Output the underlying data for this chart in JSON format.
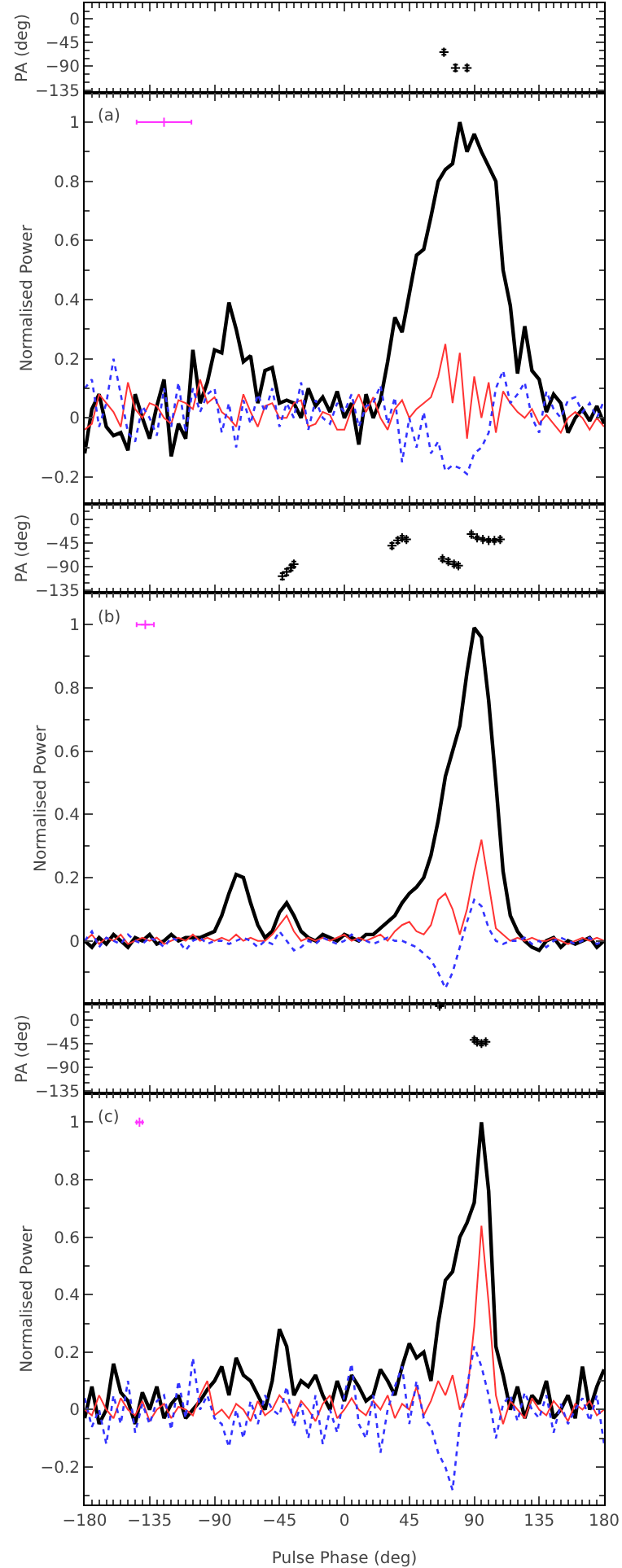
{
  "chart_data": [
    {
      "type": "scatter",
      "ylabel": "PA (deg)",
      "xlim": [
        -180,
        180
      ],
      "xticks": [
        -180,
        -135,
        -90,
        -45,
        0,
        45,
        90,
        135,
        180
      ],
      "ylim": [
        -140,
        30
      ],
      "yticks": [
        0,
        -45,
        -90,
        -135
      ],
      "tick_labels": "y",
      "marker": "cross",
      "series": [
        {
          "color": "#000000",
          "x": [
            69,
            77,
            85
          ],
          "values": [
            -63,
            -93,
            -93
          ],
          "errors": [
            5,
            6,
            5
          ]
        }
      ]
    },
    {
      "type": "line",
      "ylabel": "Normalised Power",
      "annotations": [
        "(a)"
      ],
      "xlim": [
        -180,
        180
      ],
      "xticks": [
        -180,
        -135,
        -90,
        -45,
        0,
        45,
        90,
        135,
        180
      ],
      "ylim": [
        -0.29,
        1.1
      ],
      "yticks": [
        -0.2,
        0,
        0.2,
        0.4,
        0.6,
        0.8,
        1
      ],
      "tick_labels": "y",
      "x": [
        -180,
        -175,
        -170,
        -165,
        -160,
        -155,
        -150,
        -145,
        -140,
        -135,
        -130,
        -125,
        -120,
        -115,
        -110,
        -105,
        -100,
        -95,
        -90,
        -85,
        -80,
        -75,
        -70,
        -65,
        -60,
        -55,
        -50,
        -45,
        -40,
        -35,
        -30,
        -25,
        -20,
        -15,
        -10,
        -5,
        0,
        5,
        10,
        15,
        20,
        25,
        30,
        35,
        40,
        45,
        50,
        55,
        60,
        65,
        70,
        75,
        80,
        85,
        90,
        95,
        100,
        105,
        110,
        115,
        120,
        125,
        130,
        135,
        140,
        145,
        150,
        155,
        160,
        165,
        170,
        175,
        180
      ],
      "series": [
        {
          "color": "#000000",
          "values": [
            -0.12,
            0.03,
            0.08,
            -0.03,
            -0.06,
            -0.05,
            -0.11,
            0.08,
            0.0,
            -0.07,
            0.04,
            0.13,
            -0.13,
            -0.02,
            -0.07,
            0.23,
            0.05,
            0.12,
            0.23,
            0.22,
            0.39,
            0.3,
            0.19,
            0.21,
            0.05,
            0.16,
            0.17,
            0.05,
            0.06,
            0.05,
            0.0,
            0.1,
            0.04,
            0.07,
            0.02,
            0.09,
            0.0,
            0.05,
            -0.09,
            0.08,
            0.0,
            0.06,
            0.19,
            0.34,
            0.29,
            0.42,
            0.55,
            0.57,
            0.68,
            0.8,
            0.84,
            0.86,
            1.0,
            0.9,
            0.96,
            0.9,
            0.85,
            0.8,
            0.5,
            0.38,
            0.15,
            0.31,
            0.16,
            0.13,
            0.02,
            0.08,
            0.05,
            -0.05,
            0.0,
            0.03,
            -0.01,
            0.04,
            -0.02
          ]
        },
        {
          "color": "#ff3333",
          "values": [
            -0.04,
            -0.02,
            0.08,
            0.05,
            0.02,
            -0.03,
            0.12,
            0.03,
            0.0,
            0.05,
            0.04,
            0.0,
            -0.02,
            0.06,
            0.05,
            0.03,
            0.13,
            0.05,
            0.07,
            0.02,
            0.0,
            -0.03,
            0.08,
            0.02,
            -0.03,
            0.04,
            0.05,
            0.0,
            0.0,
            0.05,
            0.06,
            -0.03,
            -0.02,
            0.02,
            0.01,
            -0.04,
            -0.04,
            0.03,
            0.08,
            0.02,
            0.07,
            0.0,
            -0.04,
            0.03,
            0.06,
            0.0,
            0.03,
            0.05,
            0.07,
            0.14,
            0.25,
            0.05,
            0.22,
            -0.07,
            0.14,
            0.0,
            0.12,
            -0.05,
            0.09,
            0.05,
            0.02,
            0.0,
            0.03,
            -0.02,
            0.01,
            -0.02,
            -0.05,
            0.0,
            0.02,
            0.0,
            -0.04,
            0.0,
            -0.03
          ]
        },
        {
          "color": "#3333ff",
          "line_style": "dotted",
          "values": [
            0.1,
            0.13,
            -0.03,
            0.05,
            0.2,
            0.08,
            -0.05,
            -0.08,
            0.04,
            0.0,
            -0.06,
            0.1,
            -0.03,
            0.12,
            -0.05,
            0.1,
            0.02,
            0.08,
            0.1,
            -0.05,
            0.05,
            -0.1,
            0.06,
            -0.02,
            0.08,
            0.02,
            0.1,
            -0.03,
            0.05,
            0.0,
            0.12,
            -0.04,
            0.06,
            0.0,
            -0.02,
            0.05,
            0.02,
            0.08,
            -0.03,
            0.04,
            0.05,
            0.11,
            -0.02,
            0.07,
            -0.15,
            0.0,
            -0.1,
            0.02,
            -0.12,
            -0.08,
            -0.18,
            -0.16,
            -0.17,
            -0.19,
            -0.12,
            -0.1,
            -0.05,
            0.1,
            0.16,
            0.05,
            0.08,
            0.12,
            0.0,
            -0.05,
            0.09,
            0.03,
            0.0,
            0.06,
            0.07,
            0.02,
            0.05,
            0.0,
            0.06
          ]
        },
        {
          "type": "scatter",
          "marker": "cross",
          "color": "#ff33ff",
          "x": [
            -125
          ],
          "values": [
            1
          ],
          "xerrors": [
            19
          ]
        }
      ]
    },
    {
      "type": "scatter",
      "ylabel": "PA (deg)",
      "xlim": [
        -180,
        180
      ],
      "xticks": [
        -180,
        -135,
        -90,
        -45,
        0,
        45,
        90,
        135,
        180
      ],
      "ylim": [
        -140,
        30
      ],
      "yticks": [
        0,
        -45,
        -90,
        -135
      ],
      "tick_labels": "y",
      "marker": "cross",
      "series": [
        {
          "color": "#000000",
          "x": [
            -43,
            -40,
            -37,
            -35,
            33,
            37,
            40,
            43,
            68,
            72,
            76,
            79,
            88,
            92,
            96,
            100,
            104,
            108
          ],
          "values": [
            -108,
            -100,
            -92,
            -85,
            -50,
            -40,
            -35,
            -38,
            -75,
            -80,
            -85,
            -88,
            -28,
            -35,
            -38,
            -40,
            -40,
            -38
          ],
          "errors": [
            6,
            6,
            5,
            5,
            5,
            5,
            4,
            4,
            4,
            4,
            4,
            4,
            4,
            3,
            3,
            3,
            3,
            4
          ]
        }
      ]
    },
    {
      "type": "line",
      "ylabel": "Normalised Power",
      "annotations": [
        "(b)"
      ],
      "xlim": [
        -180,
        180
      ],
      "xticks": [
        -180,
        -135,
        -90,
        -45,
        0,
        45,
        90,
        135,
        180
      ],
      "ylim": [
        -0.2,
        1.1
      ],
      "yticks": [
        0,
        0.2,
        0.4,
        0.6,
        0.8,
        1
      ],
      "tick_labels": "y",
      "x": [
        -180,
        -175,
        -170,
        -165,
        -160,
        -155,
        -150,
        -145,
        -140,
        -135,
        -130,
        -125,
        -120,
        -115,
        -110,
        -105,
        -100,
        -95,
        -90,
        -85,
        -80,
        -75,
        -70,
        -65,
        -60,
        -55,
        -50,
        -45,
        -40,
        -35,
        -30,
        -25,
        -20,
        -15,
        -10,
        -5,
        0,
        5,
        10,
        15,
        20,
        25,
        30,
        35,
        40,
        45,
        50,
        55,
        60,
        65,
        70,
        75,
        80,
        85,
        90,
        95,
        100,
        105,
        110,
        115,
        120,
        125,
        130,
        135,
        140,
        145,
        150,
        155,
        160,
        165,
        170,
        175,
        180
      ],
      "series": [
        {
          "color": "#000000",
          "values": [
            0.0,
            -0.02,
            0.01,
            -0.01,
            0.02,
            0.0,
            -0.02,
            0.01,
            0.0,
            0.02,
            -0.01,
            0.0,
            0.02,
            0.0,
            0.01,
            0.01,
            0.01,
            0.02,
            0.03,
            0.08,
            0.15,
            0.21,
            0.2,
            0.12,
            0.05,
            0.01,
            0.03,
            0.09,
            0.12,
            0.08,
            0.03,
            0.01,
            0.0,
            0.02,
            0.01,
            0.0,
            0.02,
            0.01,
            0.0,
            0.02,
            0.02,
            0.04,
            0.06,
            0.08,
            0.12,
            0.15,
            0.17,
            0.2,
            0.27,
            0.38,
            0.52,
            0.6,
            0.68,
            0.85,
            0.99,
            0.96,
            0.76,
            0.5,
            0.22,
            0.08,
            0.03,
            0.0,
            -0.02,
            -0.03,
            0.0,
            0.01,
            -0.02,
            0.0,
            -0.01,
            0.0,
            0.01,
            -0.02,
            0.0
          ]
        },
        {
          "color": "#ff3333",
          "values": [
            0.0,
            0.02,
            -0.01,
            0.01,
            0.0,
            0.02,
            -0.01,
            0.0,
            0.01,
            0.0,
            0.01,
            -0.01,
            0.0,
            0.01,
            0.0,
            0.02,
            0.0,
            0.01,
            0.0,
            0.01,
            0.0,
            0.02,
            0.0,
            0.01,
            0.0,
            0.0,
            0.02,
            0.05,
            0.08,
            0.03,
            0.0,
            0.01,
            0.0,
            0.01,
            0.0,
            0.01,
            0.02,
            0.0,
            0.01,
            0.0,
            0.01,
            0.02,
            0.0,
            0.03,
            0.05,
            0.06,
            0.03,
            0.02,
            0.05,
            0.13,
            0.15,
            0.1,
            0.02,
            0.1,
            0.22,
            0.32,
            0.18,
            0.04,
            0.02,
            0.0,
            0.01,
            0.0,
            0.01,
            0.0,
            0.0,
            0.01,
            0.0,
            -0.01,
            0.0,
            0.01,
            0.0,
            0.01,
            0.0
          ]
        },
        {
          "color": "#3333ff",
          "line_style": "dotted",
          "values": [
            0.0,
            0.03,
            -0.02,
            0.01,
            0.0,
            -0.01,
            0.02,
            0.0,
            -0.01,
            0.01,
            0.0,
            -0.02,
            0.01,
            0.0,
            -0.03,
            0.0,
            0.01,
            -0.01,
            0.0,
            0.0,
            -0.01,
            0.0,
            0.01,
            0.0,
            -0.02,
            0.0,
            -0.01,
            0.03,
            0.0,
            -0.03,
            -0.02,
            0.0,
            -0.01,
            0.01,
            0.0,
            -0.01,
            0.0,
            0.02,
            0.0,
            0.0,
            -0.01,
            0.0,
            0.01,
            0.0,
            0.0,
            -0.01,
            -0.02,
            -0.04,
            -0.06,
            -0.1,
            -0.15,
            -0.1,
            -0.02,
            0.06,
            0.13,
            0.11,
            0.04,
            0.0,
            -0.01,
            0.0,
            0.0,
            0.01,
            -0.01,
            0.0,
            -0.02,
            0.0,
            0.01,
            0.0,
            -0.01,
            0.0,
            0.01,
            -0.01,
            0.0
          ]
        },
        {
          "type": "scatter",
          "marker": "cross",
          "color": "#ff33ff",
          "x": [
            -138
          ],
          "values": [
            1
          ],
          "xerrors": [
            6
          ]
        }
      ]
    },
    {
      "type": "scatter",
      "ylabel": "PA (deg)",
      "xlim": [
        -180,
        180
      ],
      "xticks": [
        -180,
        -135,
        -90,
        -45,
        0,
        45,
        90,
        135,
        180
      ],
      "ylim": [
        -140,
        30
      ],
      "yticks": [
        0,
        -45,
        -90,
        -135
      ],
      "tick_labels": "y",
      "marker": "cross",
      "series": [
        {
          "color": "#000000",
          "x": [
            66,
            90,
            92,
            95,
            98
          ],
          "values": [
            26,
            -38,
            -42,
            -45,
            -42
          ],
          "errors": [
            3,
            4,
            4,
            4,
            4
          ]
        }
      ]
    },
    {
      "type": "line",
      "ylabel": "Normalised Power",
      "xlabel": "Pulse Phase (deg)",
      "annotations": [
        "(c)"
      ],
      "xlim": [
        -180,
        180
      ],
      "xticks": [
        -180,
        -135,
        -90,
        -45,
        0,
        45,
        90,
        135,
        180
      ],
      "ylim": [
        -0.33,
        1.1
      ],
      "yticks": [
        -0.2,
        0,
        0.2,
        0.4,
        0.6,
        0.8,
        1
      ],
      "x": [
        -180,
        -175,
        -170,
        -165,
        -160,
        -155,
        -150,
        -145,
        -140,
        -135,
        -130,
        -125,
        -120,
        -115,
        -110,
        -105,
        -100,
        -95,
        -90,
        -85,
        -80,
        -75,
        -70,
        -65,
        -60,
        -55,
        -50,
        -45,
        -40,
        -35,
        -30,
        -25,
        -20,
        -15,
        -10,
        -5,
        0,
        5,
        10,
        15,
        20,
        25,
        30,
        35,
        40,
        45,
        50,
        55,
        60,
        65,
        70,
        75,
        80,
        85,
        90,
        95,
        100,
        105,
        110,
        115,
        120,
        125,
        130,
        135,
        140,
        145,
        150,
        155,
        160,
        165,
        170,
        175,
        180
      ],
      "series": [
        {
          "color": "#000000",
          "values": [
            -0.03,
            0.08,
            -0.05,
            0.0,
            0.16,
            0.06,
            0.03,
            -0.05,
            0.06,
            0.0,
            0.08,
            -0.03,
            0.02,
            0.05,
            -0.03,
            0.0,
            0.03,
            0.07,
            0.1,
            0.15,
            0.05,
            0.18,
            0.12,
            0.1,
            0.05,
            0.0,
            0.1,
            0.28,
            0.22,
            0.05,
            0.1,
            0.08,
            0.12,
            0.05,
            0.0,
            0.1,
            0.03,
            0.12,
            0.08,
            0.03,
            0.05,
            0.14,
            0.1,
            0.05,
            0.15,
            0.23,
            0.18,
            0.2,
            0.1,
            0.3,
            0.45,
            0.48,
            0.6,
            0.65,
            0.72,
            1.0,
            0.76,
            0.22,
            0.12,
            0.0,
            0.08,
            -0.03,
            0.05,
            0.02,
            0.1,
            -0.03,
            0.0,
            0.05,
            -0.03,
            0.15,
            0.0,
            0.08,
            0.14
          ]
        },
        {
          "color": "#ff3333",
          "values": [
            0.0,
            -0.02,
            0.05,
            0.0,
            -0.03,
            0.04,
            0.0,
            -0.02,
            0.03,
            -0.04,
            0.0,
            0.02,
            -0.03,
            0.01,
            0.0,
            -0.02,
            0.05,
            0.1,
            -0.02,
            0.0,
            -0.03,
            0.02,
            0.0,
            -0.04,
            0.03,
            -0.02,
            0.0,
            0.05,
            0.02,
            -0.03,
            0.03,
            0.0,
            -0.04,
            0.02,
            0.05,
            -0.03,
            0.0,
            0.04,
            0.0,
            -0.02,
            0.03,
            0.0,
            0.05,
            -0.03,
            0.02,
            0.0,
            0.08,
            -0.02,
            0.03,
            0.1,
            0.05,
            0.12,
            0.0,
            0.05,
            0.29,
            0.64,
            0.37,
            0.05,
            -0.05,
            0.03,
            0.0,
            -0.03,
            0.04,
            0.0,
            -0.02,
            0.03,
            0.0,
            -0.04,
            0.02,
            0.0,
            0.03,
            -0.02,
            0.0
          ]
        },
        {
          "color": "#3333ff",
          "line_style": "dotted",
          "values": [
            0.04,
            -0.06,
            0.0,
            -0.12,
            0.05,
            -0.05,
            0.1,
            -0.08,
            0.02,
            -0.05,
            0.03,
            0.05,
            -0.07,
            0.1,
            -0.03,
            0.18,
            0.0,
            0.05,
            -0.03,
            -0.05,
            -0.13,
            0.0,
            -0.1,
            0.03,
            -0.05,
            0.05,
            0.0,
            -0.02,
            0.08,
            -0.06,
            0.02,
            -0.1,
            0.05,
            -0.12,
            0.0,
            -0.08,
            0.05,
            0.16,
            -0.05,
            -0.1,
            0.05,
            -0.15,
            0.0,
            0.08,
            0.15,
            -0.05,
            0.1,
            -0.03,
            -0.06,
            -0.15,
            -0.2,
            -0.28,
            -0.05,
            0.08,
            0.22,
            0.15,
            0.05,
            -0.1,
            0.02,
            0.05,
            -0.04,
            0.06,
            0.0,
            -0.03,
            0.05,
            -0.08,
            0.02,
            -0.05,
            0.0,
            0.04,
            -0.04,
            0.05,
            -0.12
          ]
        },
        {
          "type": "scatter",
          "marker": "cross",
          "color": "#ff33ff",
          "x": [
            -142
          ],
          "values": [
            1
          ],
          "xerrors": [
            2
          ]
        }
      ]
    }
  ]
}
